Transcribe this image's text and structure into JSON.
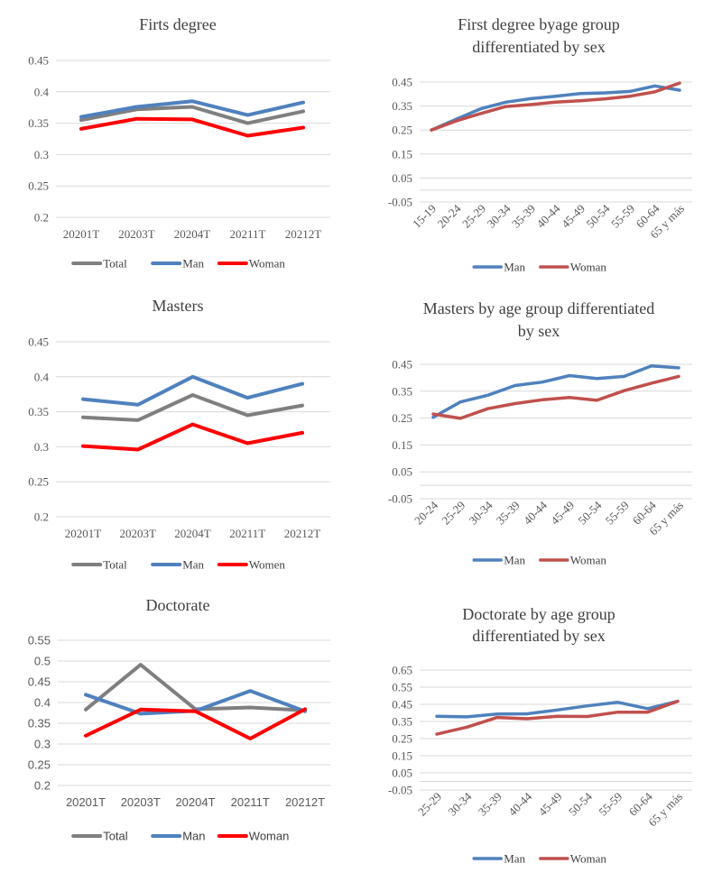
{
  "chart_data": [
    {
      "id": "first-degree",
      "type": "line",
      "title": [
        "Firts degree"
      ],
      "xlabel": "",
      "ylabel": "",
      "categories": [
        "20201T",
        "20203T",
        "20204T",
        "20211T",
        "20212T"
      ],
      "yticks": [
        "0.2",
        "0.25",
        "0.3",
        "0.35",
        "0.4",
        "0.45"
      ],
      "ylim": [
        0.2,
        0.45
      ],
      "grid": true,
      "legend_position": "bottom",
      "series": [
        {
          "name": "Total",
          "color": "#7f7f7f",
          "values": [
            0.355,
            0.372,
            0.376,
            0.35,
            0.369
          ]
        },
        {
          "name": "Man",
          "color": "#4f81bd",
          "values": [
            0.36,
            0.376,
            0.385,
            0.363,
            0.383
          ]
        },
        {
          "name": "Woman",
          "color": "#ff0000",
          "values": [
            0.341,
            0.357,
            0.356,
            0.33,
            0.343
          ]
        }
      ]
    },
    {
      "id": "first-degree-age",
      "type": "line",
      "title": [
        "First degree byage group",
        "differentiated by sex"
      ],
      "xlabel": "",
      "ylabel": "",
      "categories": [
        "15-19",
        "20-24",
        "25-29",
        "30-34",
        "35-39",
        "40-44",
        "45-49",
        "50-54",
        "55-59",
        "60-64",
        "65 y más"
      ],
      "yticks": [
        "-0.05",
        "0.05",
        "0.15",
        "0.25",
        "0.35",
        "0.45"
      ],
      "ylim": [
        -0.05,
        0.45
      ],
      "grid": true,
      "legend_position": "bottom",
      "series": [
        {
          "name": "Man",
          "color": "#4f81bd",
          "values": [
            0.25,
            0.295,
            0.339,
            0.366,
            0.381,
            0.391,
            0.402,
            0.405,
            0.411,
            0.434,
            0.416
          ]
        },
        {
          "name": "Woman",
          "color": "#c0504d",
          "values": [
            0.25,
            0.288,
            0.319,
            0.348,
            0.356,
            0.366,
            0.372,
            0.38,
            0.391,
            0.409,
            0.446
          ]
        }
      ]
    },
    {
      "id": "masters",
      "type": "line",
      "title": [
        "Masters"
      ],
      "xlabel": "",
      "ylabel": "",
      "categories": [
        "20201T",
        "20203T",
        "20204T",
        "20211T",
        "20212T"
      ],
      "yticks": [
        "0.2",
        "0.25",
        "0.3",
        "0.35",
        "0.4",
        "0.45"
      ],
      "ylim": [
        0.2,
        0.45
      ],
      "grid": true,
      "legend_position": "bottom",
      "series": [
        {
          "name": "Total",
          "color": "#7f7f7f",
          "values": [
            0.342,
            0.338,
            0.374,
            0.345,
            0.359
          ]
        },
        {
          "name": "Man",
          "color": "#4f81bd",
          "values": [
            0.368,
            0.36,
            0.4,
            0.37,
            0.39
          ]
        },
        {
          "name": "Women",
          "color": "#ff0000",
          "values": [
            0.301,
            0.296,
            0.332,
            0.305,
            0.32
          ]
        }
      ]
    },
    {
      "id": "masters-age",
      "type": "line",
      "title": [
        "Masters by age group differentiated",
        "by sex"
      ],
      "xlabel": "",
      "ylabel": "",
      "categories": [
        "20-24",
        "25-29",
        "30-34",
        "35-39",
        "40-44",
        "45-49",
        "50-54",
        "55-59",
        "60-64",
        "65 y más"
      ],
      "yticks": [
        "-0.05",
        "0.05",
        "0.15",
        "0.25",
        "0.35",
        "0.45"
      ],
      "ylim": [
        -0.05,
        0.45
      ],
      "grid": true,
      "legend_position": "bottom",
      "series": [
        {
          "name": "Man",
          "color": "#4f81bd",
          "values": [
            0.253,
            0.31,
            0.335,
            0.371,
            0.384,
            0.408,
            0.397,
            0.405,
            0.444,
            0.437
          ]
        },
        {
          "name": "Woman",
          "color": "#c0504d",
          "values": [
            0.265,
            0.249,
            0.285,
            0.304,
            0.318,
            0.327,
            0.316,
            0.352,
            0.38,
            0.405
          ]
        }
      ]
    },
    {
      "id": "doctorate",
      "type": "line",
      "title": [
        "Doctorate"
      ],
      "xlabel": "",
      "ylabel": "",
      "categories": [
        "20201T",
        "20203T",
        "20204T",
        "20211T",
        "20212T"
      ],
      "yticks": [
        "0.2",
        "0.25",
        "0.3",
        "0.35",
        "0.4",
        "0.45",
        "0.5",
        "0.55"
      ],
      "ylim": [
        0.2,
        0.55
      ],
      "grid": true,
      "legend_position": "bottom",
      "series": [
        {
          "name": "Total",
          "color": "#7f7f7f",
          "values": [
            0.383,
            0.491,
            0.384,
            0.388,
            0.381
          ]
        },
        {
          "name": "Man",
          "color": "#4f81bd",
          "values": [
            0.419,
            0.373,
            0.38,
            0.428,
            0.379
          ]
        },
        {
          "name": "Woman",
          "color": "#ff0000",
          "values": [
            0.32,
            0.383,
            0.379,
            0.313,
            0.384
          ]
        }
      ]
    },
    {
      "id": "doctorate-age",
      "type": "line",
      "title": [
        "Doctorate by age group",
        "differentiated by sex"
      ],
      "xlabel": "",
      "ylabel": "",
      "categories": [
        "25-29",
        "30-34",
        "35-39",
        "40-44",
        "45-49",
        "50-54",
        "55-59",
        "60-64",
        "65 y más"
      ],
      "yticks": [
        "-0.05",
        "0.05",
        "0.15",
        "0.25",
        "0.35",
        "0.45",
        "0.55",
        "0.65"
      ],
      "ylim": [
        -0.05,
        0.65
      ],
      "grid": true,
      "legend_position": "bottom",
      "series": [
        {
          "name": "Man",
          "color": "#4f81bd",
          "values": [
            0.38,
            0.377,
            0.393,
            0.395,
            0.417,
            0.441,
            0.462,
            0.425,
            0.468
          ]
        },
        {
          "name": "Woman",
          "color": "#c0504d",
          "values": [
            0.276,
            0.317,
            0.373,
            0.366,
            0.38,
            0.379,
            0.404,
            0.404,
            0.468
          ]
        }
      ]
    }
  ]
}
